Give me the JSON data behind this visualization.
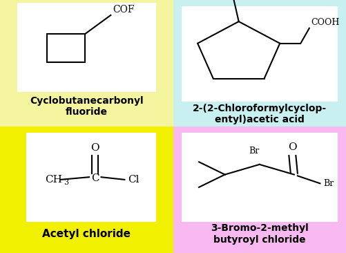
{
  "bg_color": "#f5f5a0",
  "panel_colors": [
    "#f5f5a0",
    "#c8f0f0",
    "#f0f000",
    "#f8b8f0"
  ],
  "panel_labels": [
    "Cyclobutanecarbonyl\nfluoride",
    "2-(2-Chloroformylcyclop-\nentyl)acetic acid",
    "Acetyl chloride",
    "3-Bromo-2-methyl\nbutyroyl chloride"
  ],
  "label_fontsize": 10,
  "line_color": "#000000",
  "text_color": "#000000"
}
